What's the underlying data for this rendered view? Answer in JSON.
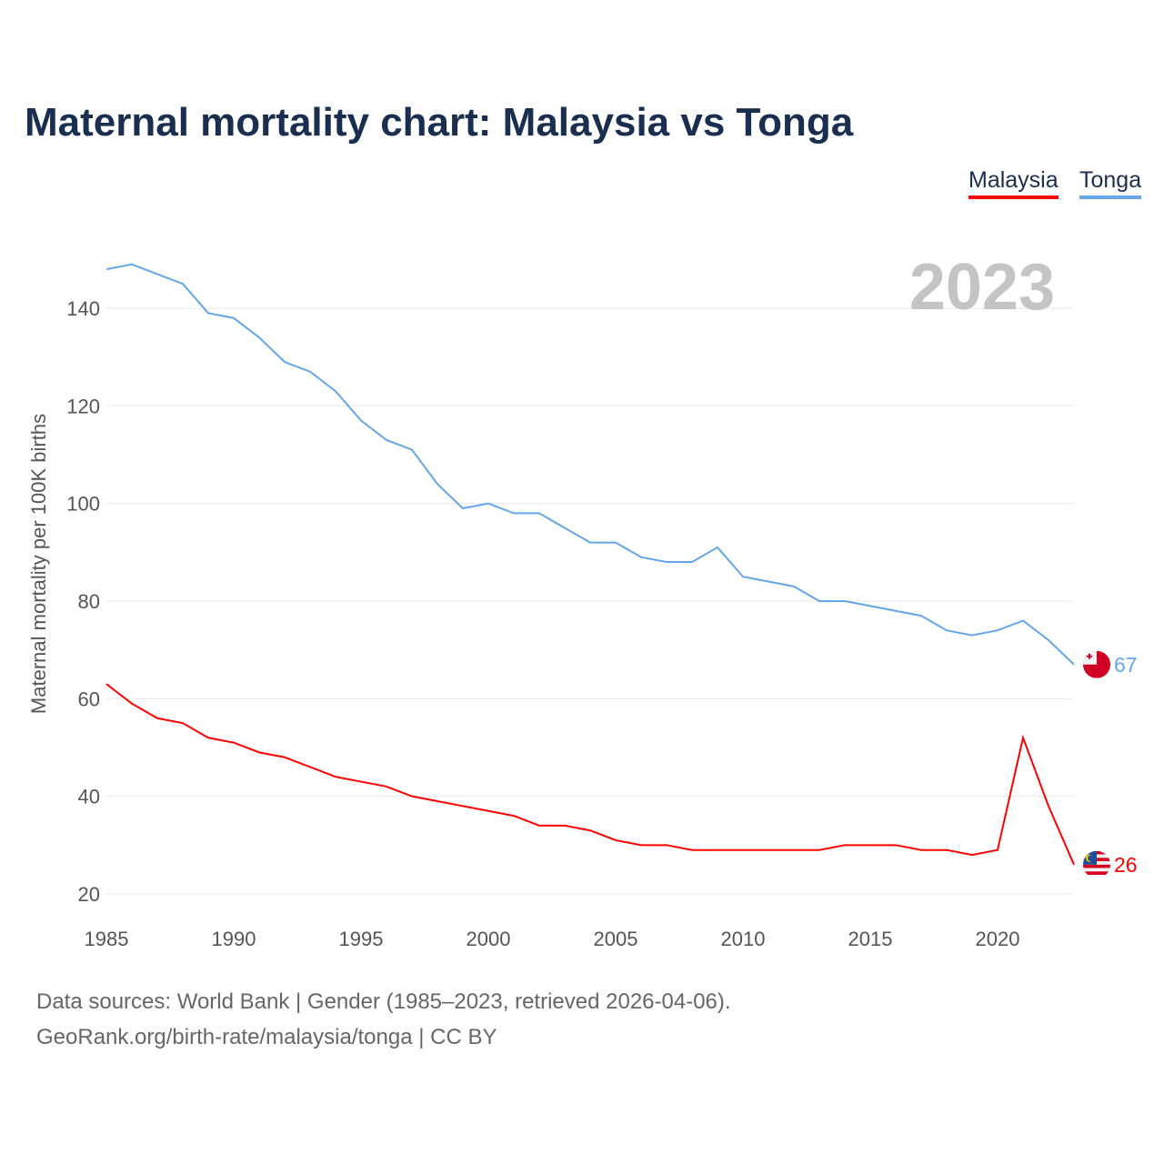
{
  "title": "Maternal mortality chart: Malaysia vs Tonga",
  "legend": [
    {
      "label": "Malaysia",
      "color": "#ff0000"
    },
    {
      "label": "Tonga",
      "color": "#63a6eb"
    }
  ],
  "footer": {
    "line1": "Data sources: World Bank | Gender (1985–2023, retrieved 2026-04-06).",
    "line2": "GeoRank.org/birth-rate/malaysia/tonga | CC BY"
  },
  "chart_data": {
    "type": "line",
    "title": "Maternal mortality chart: Malaysia vs Tonga",
    "year_label": "2023",
    "xlabel": "",
    "ylabel": "Maternal mortality per 100K births",
    "xlim": [
      1985,
      2023
    ],
    "ylim": [
      20,
      150
    ],
    "xticks": [
      1985,
      1990,
      1995,
      2000,
      2005,
      2010,
      2015,
      2020
    ],
    "yticks": [
      20,
      40,
      60,
      80,
      100,
      120,
      140
    ],
    "grid": true,
    "legend_position": "top-right",
    "x": [
      1985,
      1986,
      1987,
      1988,
      1989,
      1990,
      1991,
      1992,
      1993,
      1994,
      1995,
      1996,
      1997,
      1998,
      1999,
      2000,
      2001,
      2002,
      2003,
      2004,
      2005,
      2006,
      2007,
      2008,
      2009,
      2010,
      2011,
      2012,
      2013,
      2014,
      2015,
      2016,
      2017,
      2018,
      2019,
      2020,
      2021,
      2022,
      2023
    ],
    "series": [
      {
        "name": "Malaysia",
        "color": "#ff0000",
        "end_label": "26",
        "flag": "malaysia-flag",
        "values": [
          63,
          59,
          56,
          55,
          52,
          51,
          49,
          48,
          46,
          44,
          43,
          42,
          40,
          39,
          38,
          37,
          36,
          34,
          34,
          33,
          31,
          30,
          30,
          29,
          29,
          29,
          29,
          29,
          29,
          30,
          30,
          30,
          29,
          29,
          28,
          29,
          52,
          38,
          26
        ]
      },
      {
        "name": "Tonga",
        "color": "#63a6eb",
        "end_label": "67",
        "flag": "tonga-flag",
        "values": [
          148,
          149,
          147,
          145,
          139,
          138,
          134,
          129,
          127,
          123,
          117,
          113,
          111,
          104,
          99,
          100,
          98,
          98,
          95,
          92,
          92,
          89,
          88,
          88,
          91,
          85,
          84,
          83,
          80,
          80,
          79,
          78,
          77,
          74,
          73,
          74,
          76,
          72,
          67
        ]
      }
    ]
  }
}
